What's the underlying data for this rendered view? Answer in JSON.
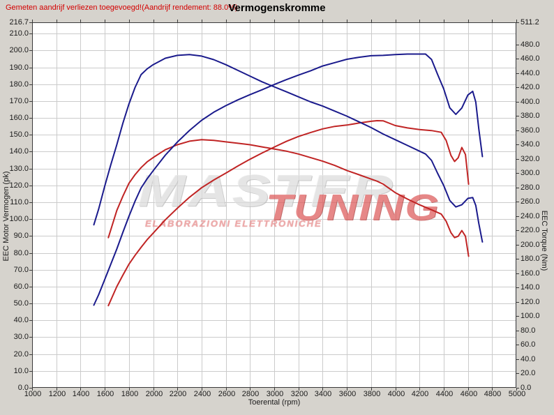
{
  "header": {
    "warning_text": "Gemeten aandrijf verliezen toegevoegd!(Aandrijf rendement: 88.0%)",
    "title": "Vermogenskromme"
  },
  "watermark": {
    "master": "MASTER",
    "tuning": "TUNING",
    "subtitle": "ELABORAZIONI ELETTRONICHE"
  },
  "colors": {
    "page_bg": "#d6d3cd",
    "plot_bg": "#ffffff",
    "grid": "#cbcbcb",
    "border": "#3a3a3a",
    "curve_blue": "#1a1a8c",
    "curve_red": "#c02424",
    "warning_text": "#d40000",
    "watermark_gray": "#dcdcdc",
    "watermark_red": "#dd5a5a"
  },
  "chart_data": {
    "type": "line",
    "title": "Vermogenskromme",
    "xlabel": "Toerental (rpm)",
    "ylabel_left": "EEC Motor Vermogen (pk)",
    "ylabel_right": "EEC Torque (Nm)",
    "grid": true,
    "legend": "none",
    "xlim": [
      1000,
      5000
    ],
    "ylim_left": [
      0,
      216.7
    ],
    "ylim_right": [
      0,
      511.2
    ],
    "x_tick_labels": [
      "1000",
      "1200",
      "1400",
      "1600",
      "1800",
      "2000",
      "2200",
      "2400",
      "2600",
      "2800",
      "3000",
      "3200",
      "3400",
      "3600",
      "3800",
      "4000",
      "4200",
      "4400",
      "4600",
      "4800",
      "5000"
    ],
    "left_tick_labels": [
      "216.7",
      "210.0",
      "200.0",
      "190.0",
      "180.0",
      "170.0",
      "160.0",
      "150.0",
      "140.0",
      "130.0",
      "120.0",
      "110.0",
      "100.0",
      "90.0",
      "80.0",
      "70.0",
      "60.0",
      "50.0",
      "40.0",
      "30.0",
      "20.0",
      "10.0",
      "0.0"
    ],
    "right_tick_labels": [
      "511.2",
      "480.0",
      "460.0",
      "440.0",
      "420.0",
      "400.0",
      "380.0",
      "360.0",
      "340.0",
      "320.0",
      "300.0",
      "280.0",
      "260.0",
      "240.0",
      "220.0",
      "200.0",
      "180.0",
      "160.0",
      "140.0",
      "120.0",
      "100.0",
      "80.0",
      "60.0",
      "40.0",
      "20.0",
      "0.0"
    ],
    "series": [
      {
        "id": "torque-red",
        "label": "EEC Torque stock (red, Nm)",
        "axis": "right",
        "color": "#c02424",
        "points": [
          [
            1630,
            210
          ],
          [
            1700,
            248
          ],
          [
            1750,
            268
          ],
          [
            1800,
            286
          ],
          [
            1850,
            298
          ],
          [
            1900,
            308
          ],
          [
            1950,
            316
          ],
          [
            2000,
            322
          ],
          [
            2100,
            333
          ],
          [
            2200,
            340
          ],
          [
            2300,
            345
          ],
          [
            2400,
            347
          ],
          [
            2500,
            346
          ],
          [
            2600,
            344
          ],
          [
            2700,
            342
          ],
          [
            2800,
            340
          ],
          [
            2900,
            337
          ],
          [
            3000,
            334
          ],
          [
            3100,
            331
          ],
          [
            3200,
            327
          ],
          [
            3300,
            322
          ],
          [
            3400,
            317
          ],
          [
            3500,
            311
          ],
          [
            3600,
            304
          ],
          [
            3700,
            298
          ],
          [
            3800,
            292
          ],
          [
            3850,
            289
          ],
          [
            3900,
            285
          ],
          [
            4000,
            273
          ],
          [
            4100,
            264
          ],
          [
            4200,
            256
          ],
          [
            4300,
            249
          ],
          [
            4380,
            243
          ],
          [
            4420,
            233
          ],
          [
            4460,
            217
          ],
          [
            4490,
            210
          ],
          [
            4520,
            212
          ],
          [
            4550,
            220
          ],
          [
            4580,
            212
          ],
          [
            4606,
            184
          ]
        ]
      },
      {
        "id": "power-red",
        "label": "EEC Motor Vermogen stock (red, pk)",
        "axis": "left",
        "color": "#c02424",
        "points": [
          [
            1630,
            48.7
          ],
          [
            1700,
            60.0
          ],
          [
            1750,
            66.8
          ],
          [
            1800,
            73.3
          ],
          [
            1850,
            78.5
          ],
          [
            1900,
            83.3
          ],
          [
            1950,
            87.8
          ],
          [
            2000,
            91.7
          ],
          [
            2100,
            99.6
          ],
          [
            2200,
            106.5
          ],
          [
            2300,
            113.0
          ],
          [
            2400,
            118.6
          ],
          [
            2500,
            123.2
          ],
          [
            2600,
            127.3
          ],
          [
            2700,
            131.5
          ],
          [
            2800,
            135.5
          ],
          [
            2900,
            139.2
          ],
          [
            3000,
            142.7
          ],
          [
            3100,
            146.1
          ],
          [
            3200,
            149.0
          ],
          [
            3300,
            151.3
          ],
          [
            3400,
            153.5
          ],
          [
            3500,
            155.0
          ],
          [
            3600,
            155.8
          ],
          [
            3700,
            157.0
          ],
          [
            3800,
            158.0
          ],
          [
            3850,
            158.4
          ],
          [
            3900,
            158.3
          ],
          [
            4000,
            155.5
          ],
          [
            4100,
            154.1
          ],
          [
            4200,
            153.1
          ],
          [
            4300,
            152.5
          ],
          [
            4380,
            151.5
          ],
          [
            4420,
            146.7
          ],
          [
            4460,
            137.8
          ],
          [
            4490,
            134.2
          ],
          [
            4520,
            136.4
          ],
          [
            4550,
            142.5
          ],
          [
            4580,
            138.3
          ],
          [
            4606,
            120.7
          ]
        ]
      },
      {
        "id": "torque-blue",
        "label": "EEC Torque tuned (blue, Nm)",
        "axis": "right",
        "color": "#1a1a8c",
        "points": [
          [
            1510,
            228
          ],
          [
            1550,
            250
          ],
          [
            1600,
            282
          ],
          [
            1650,
            312
          ],
          [
            1700,
            340
          ],
          [
            1750,
            370
          ],
          [
            1800,
            397
          ],
          [
            1850,
            420
          ],
          [
            1900,
            438
          ],
          [
            1950,
            446
          ],
          [
            2000,
            452
          ],
          [
            2100,
            461
          ],
          [
            2200,
            465
          ],
          [
            2300,
            466
          ],
          [
            2400,
            464
          ],
          [
            2500,
            459
          ],
          [
            2600,
            452
          ],
          [
            2700,
            444
          ],
          [
            2800,
            436
          ],
          [
            2900,
            428
          ],
          [
            3000,
            421
          ],
          [
            3100,
            414
          ],
          [
            3200,
            407
          ],
          [
            3300,
            400
          ],
          [
            3400,
            394
          ],
          [
            3500,
            387
          ],
          [
            3600,
            380
          ],
          [
            3700,
            372
          ],
          [
            3800,
            364
          ],
          [
            3900,
            355
          ],
          [
            4000,
            347
          ],
          [
            4100,
            339
          ],
          [
            4200,
            331
          ],
          [
            4250,
            327
          ],
          [
            4300,
            318
          ],
          [
            4350,
            300
          ],
          [
            4400,
            283
          ],
          [
            4450,
            262
          ],
          [
            4500,
            253
          ],
          [
            4550,
            256
          ],
          [
            4600,
            265
          ],
          [
            4640,
            266
          ],
          [
            4665,
            255
          ],
          [
            4690,
            230
          ],
          [
            4720,
            204
          ]
        ]
      },
      {
        "id": "power-blue",
        "label": "EEC Motor Vermogen tuned (blue, pk)",
        "axis": "left",
        "color": "#1a1a8c",
        "points": [
          [
            1510,
            49.0
          ],
          [
            1550,
            55.2
          ],
          [
            1600,
            64.2
          ],
          [
            1650,
            73.3
          ],
          [
            1700,
            82.3
          ],
          [
            1750,
            92.2
          ],
          [
            1800,
            101.7
          ],
          [
            1850,
            110.6
          ],
          [
            1900,
            118.5
          ],
          [
            1950,
            123.9
          ],
          [
            2000,
            128.7
          ],
          [
            2100,
            137.9
          ],
          [
            2200,
            145.7
          ],
          [
            2300,
            152.6
          ],
          [
            2400,
            158.6
          ],
          [
            2500,
            163.4
          ],
          [
            2600,
            167.3
          ],
          [
            2700,
            170.7
          ],
          [
            2800,
            173.8
          ],
          [
            2900,
            176.7
          ],
          [
            3000,
            179.8
          ],
          [
            3100,
            182.7
          ],
          [
            3200,
            185.4
          ],
          [
            3300,
            187.9
          ],
          [
            3400,
            190.8
          ],
          [
            3500,
            192.8
          ],
          [
            3600,
            194.8
          ],
          [
            3700,
            196.0
          ],
          [
            3800,
            196.9
          ],
          [
            3900,
            197.1
          ],
          [
            4000,
            197.6
          ],
          [
            4100,
            197.9
          ],
          [
            4200,
            197.9
          ],
          [
            4250,
            197.9
          ],
          [
            4300,
            194.7
          ],
          [
            4350,
            185.8
          ],
          [
            4400,
            177.3
          ],
          [
            4450,
            166.0
          ],
          [
            4500,
            162.1
          ],
          [
            4550,
            165.9
          ],
          [
            4600,
            173.6
          ],
          [
            4640,
            175.8
          ],
          [
            4665,
            169.4
          ],
          [
            4690,
            153.6
          ],
          [
            4720,
            137.1
          ]
        ]
      }
    ]
  }
}
